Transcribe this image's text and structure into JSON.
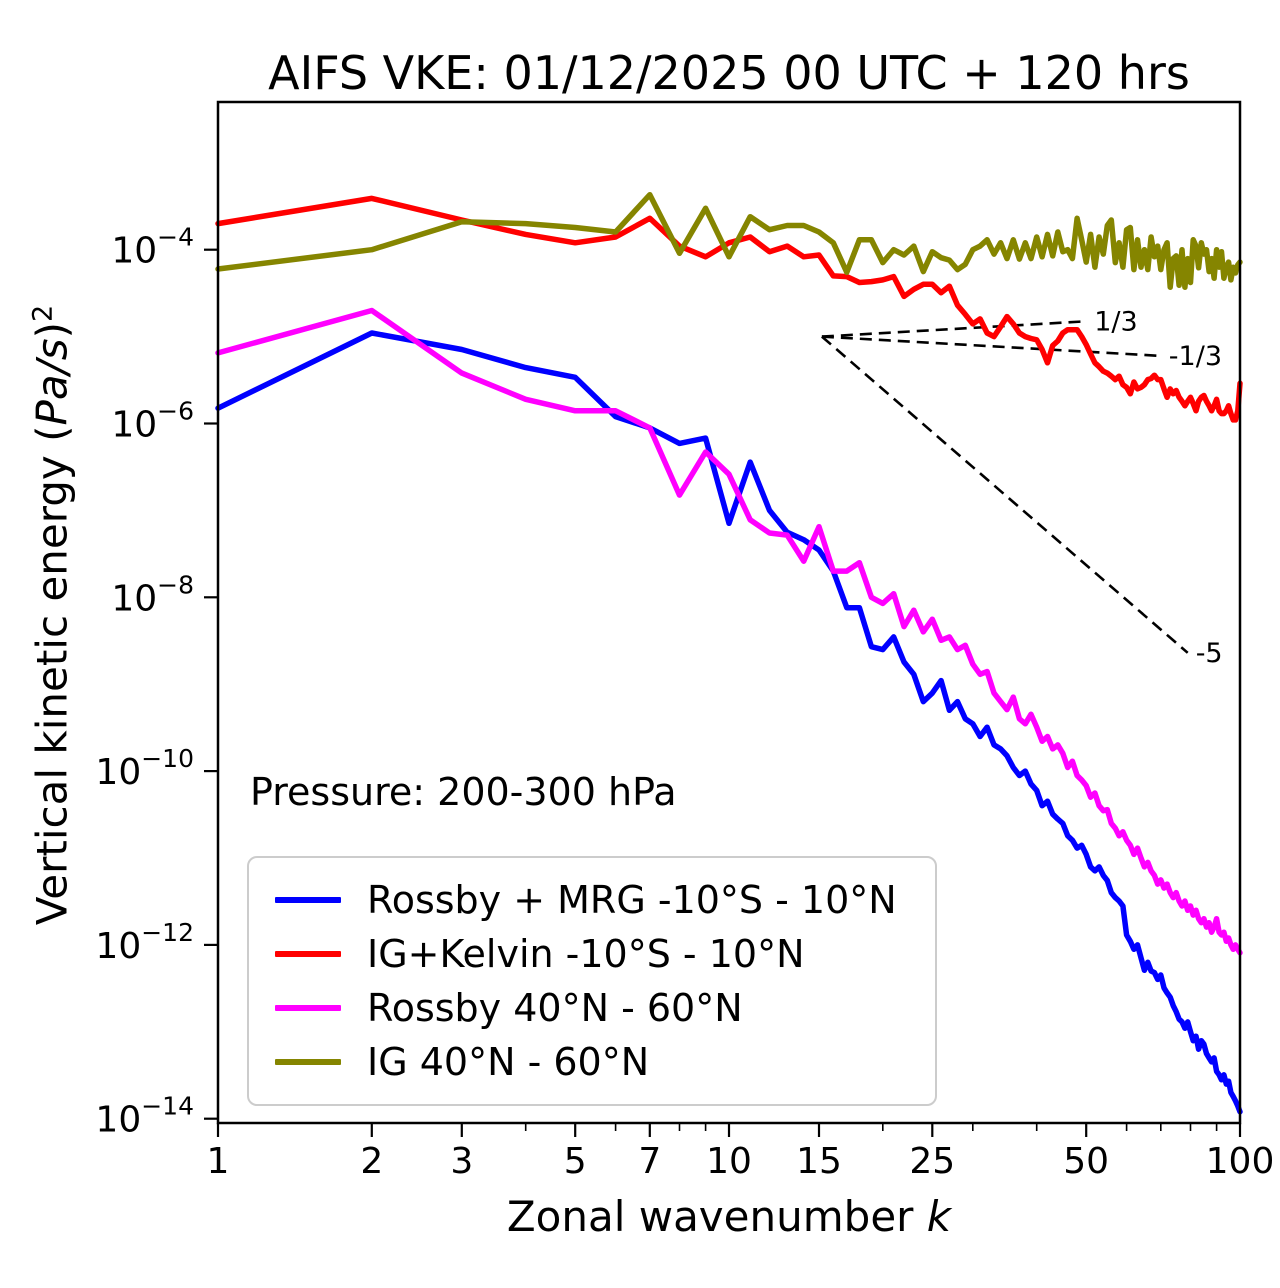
{
  "title": "AIFS VKE: 01/12/2025 00 UTC + 120 hrs",
  "axes": {
    "xlabel_prefix": "Zonal wavenumber ",
    "xlabel_math": "k",
    "ylabel_prefix": "Vertical kinetic energy (",
    "ylabel_math": "Pa/s",
    "ylabel_close": ")",
    "ylabel_sup": "2",
    "xlim": [
      1,
      100
    ],
    "ylim_exp": [
      -14.05,
      -2.3
    ],
    "x_major_ticks": [
      1,
      2,
      3,
      5,
      7,
      10,
      15,
      25,
      50,
      100
    ],
    "x_major_labels": [
      "1",
      "2",
      "3",
      "5",
      "7",
      "10",
      "15",
      "25",
      "50",
      "100"
    ],
    "x_minor_ticks": [
      4,
      6,
      8,
      9,
      20,
      30,
      40,
      60,
      70,
      80,
      90
    ],
    "y_ticks": [
      {
        "exp": -4,
        "base": "10",
        "sup": "−4"
      },
      {
        "exp": -6,
        "base": "10",
        "sup": "−6"
      },
      {
        "exp": -8,
        "base": "10",
        "sup": "−8"
      },
      {
        "exp": -10,
        "base": "10",
        "sup": "−10"
      },
      {
        "exp": -12,
        "base": "10",
        "sup": "−12"
      },
      {
        "exp": -14,
        "base": "10",
        "sup": "−14"
      }
    ]
  },
  "annotations": {
    "pressure": "Pressure: 200-300 hPa",
    "slope_lines": [
      {
        "label": "1/3",
        "x1": 15.2,
        "y1": 1e-05,
        "x2": 50,
        "y2": 1.5e-05
      },
      {
        "label": "-1/3",
        "x1": 15.2,
        "y1": 1e-05,
        "x2": 70,
        "y2": 6e-06
      },
      {
        "label": "-5",
        "x1": 15.2,
        "y1": 1e-05,
        "x2": 79,
        "y2": 2.3e-09
      }
    ]
  },
  "legend": {
    "items": [
      {
        "label": "Rossby + MRG -10°S - 10°N",
        "color": "#0000ff"
      },
      {
        "label": "IG+Kelvin -10°S - 10°N",
        "color": "#ff0000"
      },
      {
        "label": "Rossby 40°N - 60°N",
        "color": "#ff00ff"
      },
      {
        "label": "IG 40°N - 60°N",
        "color": "#858500"
      }
    ]
  },
  "chart_data": {
    "type": "line",
    "title": "AIFS VKE: 01/12/2025 00 UTC + 120 hrs",
    "xlabel": "Zonal wavenumber k",
    "ylabel": "Vertical kinetic energy (Pa/s)^2",
    "x_scale": "log",
    "y_scale": "log",
    "xlim": [
      1,
      100
    ],
    "ylim": [
      8.9e-15,
      0.005
    ],
    "grid": false,
    "legend_position": "lower-left",
    "k_min": 1,
    "k_max": 100,
    "k_step": 1,
    "series": [
      {
        "id": "rossby-mrg-tropics",
        "name": "Rossby + MRG -10°S - 10°N",
        "color": "#0000ff",
        "values": [
          1.5e-06,
          1.1e-05,
          7.1e-06,
          4.4e-06,
          3.4e-06,
          1.2e-06,
          8.9e-07,
          5.9e-07,
          6.8e-07,
          7.1e-08,
          3.6e-07,
          1e-07,
          5.6e-08,
          4.6e-08,
          3.5e-08,
          2e-08,
          7.6e-09,
          7.6e-09,
          2.7e-09,
          2.5e-09,
          3.5e-09,
          1.8e-09,
          1.3e-09,
          6.3e-10,
          7.9e-10,
          1.1e-09,
          5e-10,
          6.3e-10,
          4e-10,
          3.5e-10,
          2.5e-10,
          3.2e-10,
          2e-10,
          1.8e-10,
          1.5e-10,
          1.1e-10,
          8.9e-11,
          1e-10,
          7.1e-11,
          6e-11,
          4e-11,
          4.5e-11,
          3.2e-11,
          2.8e-11,
          2.5e-11,
          1.8e-11,
          1.6e-11,
          1.3e-11,
          1.4e-11,
          1.1e-11,
          7.9e-12,
          7.1e-12,
          7.9e-12,
          6.3e-12,
          5.5e-12,
          4e-12,
          3.5e-12,
          3.2e-12,
          2.8e-12,
          1.3e-12,
          1.1e-12,
          8.9e-13,
          1e-12,
          7.1e-13,
          5.1e-13,
          6.3e-13,
          5e-13,
          4.8e-13,
          4e-13,
          4.5e-13,
          3.2e-13,
          2.8e-13,
          2.5e-13,
          2e-13,
          1.7e-13,
          1.4e-13,
          1.3e-13,
          1.1e-13,
          1.3e-13,
          1e-13,
          7.9e-14,
          8.9e-14,
          6.3e-14,
          7.9e-14,
          7.2e-14,
          5.6e-14,
          5e-14,
          4.5e-14,
          5e-14,
          3.5e-14,
          3.2e-14,
          2.8e-14,
          3.2e-14,
          2.5e-14,
          2.7e-14,
          2e-14,
          1.8e-14,
          1.6e-14,
          1.4e-14,
          1.2e-14
        ]
      },
      {
        "id": "ig-kelvin-tropics",
        "name": "IG+Kelvin -10°S - 10°N",
        "color": "#ff0000",
        "values": [
          0.0002,
          0.00039,
          0.00022,
          0.00015,
          0.00012,
          0.00014,
          0.00023,
          0.00011,
          8.3e-05,
          0.00012,
          0.00014,
          9.5e-05,
          0.00011,
          8.3e-05,
          8.7e-05,
          5e-05,
          4.9e-05,
          4.2e-05,
          4.3e-05,
          4.5e-05,
          4.9e-05,
          2.9e-05,
          3.5e-05,
          4e-05,
          4e-05,
          3.2e-05,
          3.8e-05,
          2.3e-05,
          1.8e-05,
          1.4e-05,
          1.6e-05,
          1.1e-05,
          1e-05,
          1.3e-05,
          1.7e-05,
          1.4e-05,
          1.1e-05,
          1e-05,
          9.5e-06,
          9.2e-06,
          7.1e-06,
          5e-06,
          7.9e-06,
          8.9e-06,
          1.1e-05,
          1.2e-05,
          1.2e-05,
          1.2e-05,
          1e-05,
          8.1e-06,
          6.3e-06,
          5e-06,
          4.5e-06,
          4e-06,
          3.8e-06,
          3.5e-06,
          3.2e-06,
          3.5e-06,
          2.8e-06,
          2.6e-06,
          2.2e-06,
          3e-06,
          2.5e-06,
          2.6e-06,
          2.8e-06,
          3.2e-06,
          3.3e-06,
          3.6e-06,
          3.2e-06,
          3.2e-06,
          2.5e-06,
          2e-06,
          2.5e-06,
          2.2e-06,
          2.4e-06,
          2e-06,
          1.8e-06,
          1.6e-06,
          1.8e-06,
          2e-06,
          1.7e-06,
          1.4e-06,
          1.8e-06,
          2e-06,
          2.1e-06,
          1.8e-06,
          1.6e-06,
          1.4e-06,
          1.6e-06,
          1.9e-06,
          1.4e-06,
          1.3e-06,
          1.3e-06,
          1.4e-06,
          1.6e-06,
          1.3e-06,
          1.1e-06,
          1.1e-06,
          1.4e-06,
          2.9e-06
        ]
      },
      {
        "id": "rossby-midlat",
        "name": "Rossby 40°N - 60°N",
        "color": "#ff00ff",
        "values": [
          6.5e-06,
          2e-05,
          3.8e-06,
          1.9e-06,
          1.4e-06,
          1.4e-06,
          8.9e-07,
          1.5e-07,
          4.7e-07,
          2.6e-07,
          7.8e-08,
          5.5e-08,
          5.2e-08,
          2.6e-08,
          6.5e-08,
          2e-08,
          2e-08,
          2.5e-08,
          1e-08,
          8.5e-09,
          1.1e-08,
          4.6e-09,
          7.1e-09,
          4e-09,
          5.6e-09,
          3.2e-09,
          3.5e-09,
          2.5e-09,
          2.8e-09,
          1.7e-09,
          1.3e-09,
          1.4e-09,
          7.9e-10,
          6.3e-10,
          5.1e-10,
          7.1e-10,
          4e-10,
          3.5e-10,
          4.5e-10,
          3.2e-10,
          2.2e-10,
          2.5e-10,
          1.8e-10,
          2e-10,
          1.6e-10,
          1.1e-10,
          1.3e-10,
          8.9e-11,
          7.9e-11,
          6.8e-11,
          5e-11,
          5.6e-11,
          4e-11,
          3.5e-11,
          3.6e-11,
          2.5e-11,
          2.2e-11,
          1.8e-11,
          2e-11,
          1.6e-11,
          1.4e-11,
          1.1e-11,
          1.3e-11,
          1e-11,
          7.9e-12,
          8.9e-12,
          7.1e-12,
          6.3e-12,
          5e-12,
          5.6e-12,
          4.5e-12,
          5e-12,
          4e-12,
          3.5e-12,
          4e-12,
          3.2e-12,
          2.8e-12,
          3.2e-12,
          2.5e-12,
          2.8e-12,
          2.2e-12,
          2.5e-12,
          2e-12,
          1.8e-12,
          2e-12,
          1.6e-12,
          1.8e-12,
          1.4e-12,
          1.6e-12,
          2e-12,
          1.4e-12,
          1.3e-12,
          1.4e-12,
          1.1e-12,
          1.2e-12,
          1e-12,
          8.9e-13,
          1e-12,
          8.9e-13,
          8.1e-13
        ]
      },
      {
        "id": "ig-midlat",
        "name": "IG 40°N - 60°N",
        "color": "#858500",
        "values": [
          6e-05,
          0.0001,
          0.00021,
          0.0002,
          0.00018,
          0.00016,
          0.00043,
          9.1e-05,
          0.0003,
          8.3e-05,
          0.00024,
          0.00017,
          0.00019,
          0.00019,
          0.00016,
          0.00012,
          5.5e-05,
          0.00013,
          0.00013,
          7.1e-05,
          0.0001,
          8.7e-05,
          0.00011,
          5.6e-05,
          9.5e-05,
          8.1e-05,
          7.6e-05,
          5.9e-05,
          6.8e-05,
          0.0001,
          0.00011,
          0.00013,
          8.9e-05,
          0.00012,
          7.9e-05,
          0.00013,
          7.8e-05,
          0.00012,
          7.9e-05,
          0.00014,
          8.3e-05,
          0.00015,
          8.5e-05,
          0.00016,
          9.5e-05,
          0.0001,
          7.9e-05,
          0.00023,
          0.00013,
          7.2e-05,
          0.00015,
          6.3e-05,
          0.00014,
          8.9e-05,
          0.00019,
          0.00022,
          7.1e-05,
          0.00012,
          6.3e-05,
          0.00017,
          0.00018,
          5.9e-05,
          0.00013,
          6.3e-05,
          0.0001,
          5.9e-05,
          0.00014,
          8.3e-05,
          0.00011,
          5.9e-05,
          0.0001,
          0.00012,
          3.7e-05,
          7.9e-05,
          8.5e-05,
          3.9e-05,
          0.0001,
          3.7e-05,
          7.9e-05,
          4.2e-05,
          0.00013,
          0.00011,
          6.2e-05,
          0.00012,
          8.9e-05,
          0.0001,
          5.6e-05,
          7.9e-05,
          4.7e-05,
          0.0001,
          6.3e-05,
          9.5e-05,
          4.7e-05,
          6.3e-05,
          7.2e-05,
          4.5e-05,
          6.3e-05,
          5.4e-05,
          6.7e-05,
          7.2e-05
        ]
      }
    ]
  }
}
